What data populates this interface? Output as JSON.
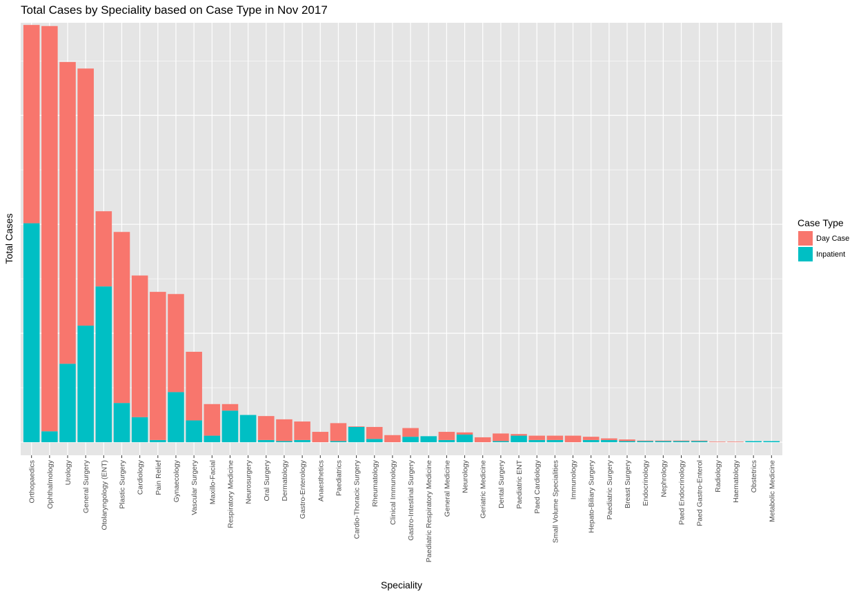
{
  "chart_data": {
    "type": "bar",
    "stacked": true,
    "title": "Total Cases by Speciality based on Case Type in Nov 2017",
    "xlabel": "Speciality",
    "ylabel": "Total Cases",
    "ylim": [
      -1.2,
      38.5
    ],
    "grid": true,
    "y_tick_labels_shown": false,
    "categories": [
      "Orthopaedics",
      "Ophthalmology",
      "Urology",
      "General Surgery",
      "Otolaryngology (ENT)",
      "Plastic Surgery",
      "Cardiology",
      "Pain Relief",
      "Gynaecology",
      "Vascular Surgery",
      "Maxillo-Facial",
      "Respiratory Medicine",
      "Neurosurgery",
      "Oral Surgery",
      "Dermatology",
      "Gastro-Enterology",
      "Anaesthetics",
      "Paediatrics",
      "Cardio-Thoracic Surgery",
      "Rheumatology",
      "Clinical Immunology",
      "Gastro-Intestinal Surgery",
      "Paediatric Respiratory Medicine",
      "General Medicine",
      "Neurology",
      "Geriatric Medicine",
      "Dental Surgery",
      "Paediatric ENT",
      "Paed Cardiology",
      "Small Volume Specialities",
      "Immunology",
      "Hepato-Biliary Surgery",
      "Paediatric Surgery",
      "Breast Surgery",
      "Endocrinology",
      "Nephrology",
      "Paed Endocrinology",
      "Paed Gastro-Enterol",
      "Radiology",
      "Haematology",
      "Obstetrics",
      "Metabolic Medicine"
    ],
    "series": [
      {
        "name": "Inpatient",
        "values": [
          20.1,
          1.0,
          7.2,
          10.7,
          14.3,
          3.6,
          2.3,
          0.2,
          4.6,
          2.0,
          0.6,
          2.9,
          2.5,
          0.2,
          0.1,
          0.2,
          0,
          0.1,
          1.4,
          0.3,
          0,
          0.5,
          0.55,
          0.2,
          0.7,
          0,
          0.1,
          0.6,
          0.2,
          0.2,
          0,
          0.2,
          0.2,
          0.1,
          0.1,
          0.1,
          0.1,
          0.1,
          0,
          0,
          0.1,
          0.1
        ]
      },
      {
        "name": "Day Case",
        "values": [
          18.2,
          37.2,
          27.7,
          23.6,
          6.9,
          15.7,
          13.0,
          13.6,
          9.0,
          6.3,
          2.9,
          0.6,
          0,
          2.2,
          2.0,
          1.7,
          0.95,
          1.65,
          0.05,
          1.1,
          0.65,
          0.8,
          0,
          0.75,
          0.2,
          0.45,
          0.7,
          0.15,
          0.4,
          0.4,
          0.6,
          0.3,
          0.15,
          0.15,
          0.05,
          0.05,
          0.05,
          0.05,
          0.05,
          0.05,
          0,
          0
        ]
      }
    ],
    "legend": {
      "title": "Case Type",
      "placement": "right",
      "entries": [
        {
          "label": "Day Case",
          "color": "#F8766D"
        },
        {
          "label": "Inpatient",
          "color": "#00BFC4"
        }
      ]
    },
    "colors": {
      "Day Case": "#F8766D",
      "Inpatient": "#00BFC4",
      "panel_background": "#E5E5E5",
      "grid": "#FFFFFF"
    }
  }
}
